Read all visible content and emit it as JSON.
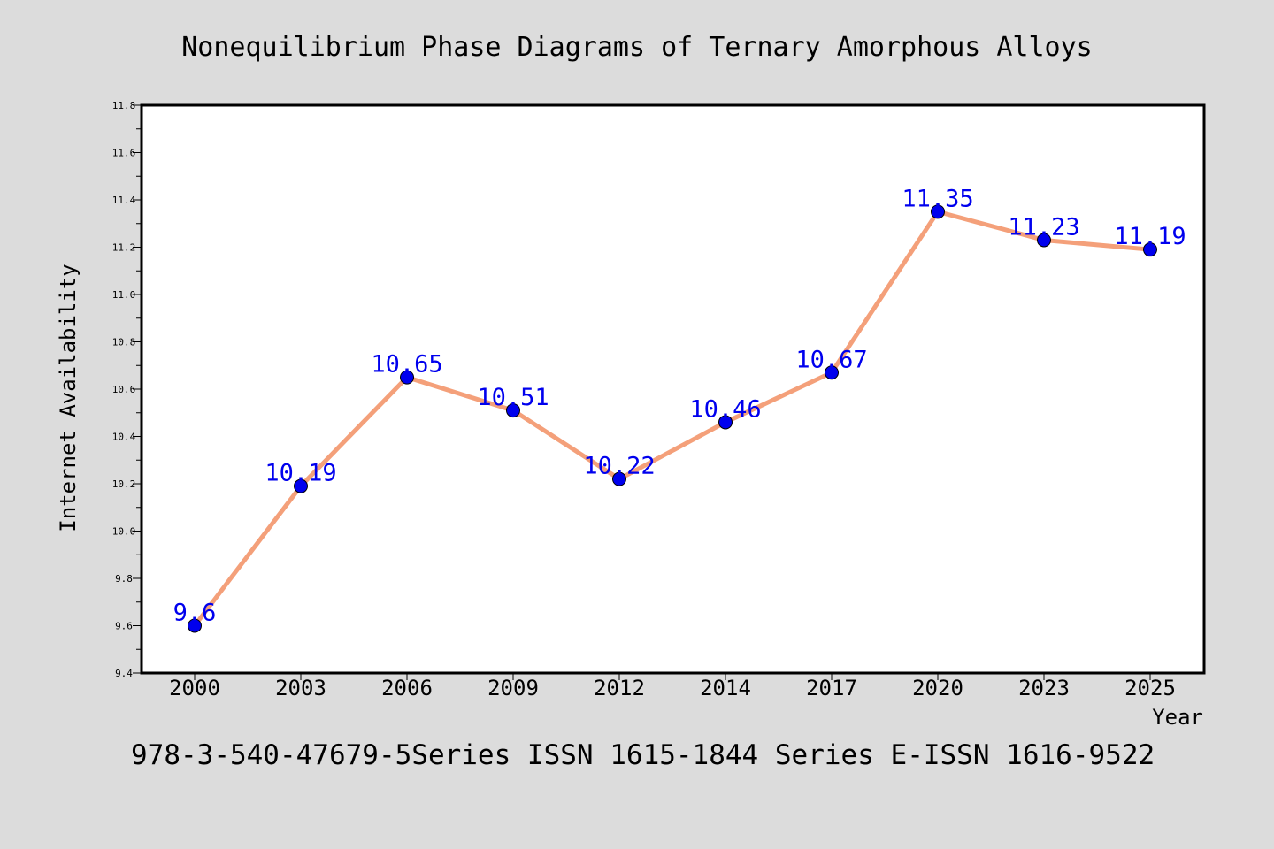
{
  "chart_data": {
    "type": "line",
    "title": "Nonequilibrium Phase Diagrams of Ternary Amorphous Alloys",
    "xlabel": "Year",
    "ylabel": "Internet Availability",
    "footer": "978-3-540-47679-5Series ISSN 1615-1844 Series E-ISSN 1616-9522",
    "categories": [
      "2000",
      "2003",
      "2006",
      "2009",
      "2012",
      "2014",
      "2017",
      "2020",
      "2023",
      "2025"
    ],
    "series": [
      {
        "values": [
          9.6,
          10.19,
          10.65,
          10.51,
          10.22,
          10.46,
          10.67,
          11.35,
          11.23,
          11.19
        ]
      }
    ],
    "data_labels": [
      "9.6",
      "10.19",
      "10.65",
      "10.51",
      "10.22",
      "10.46",
      "10.67",
      "11.35",
      "11.23",
      "11.19"
    ],
    "ylim": [
      9.4,
      11.8
    ],
    "yticks": [
      "9.4",
      "9.6",
      "9.8",
      "10.0",
      "10.2",
      "10.4",
      "10.6",
      "10.8",
      "11.0",
      "11.2",
      "11.4",
      "11.6",
      "11.8"
    ],
    "grid": false,
    "colors": {
      "line": "#f4a07a",
      "marker": "#0000ee",
      "label": "#0000ee",
      "frame": "#000000",
      "background": "#dcdcdc",
      "plot_background": "#ffffff"
    }
  }
}
